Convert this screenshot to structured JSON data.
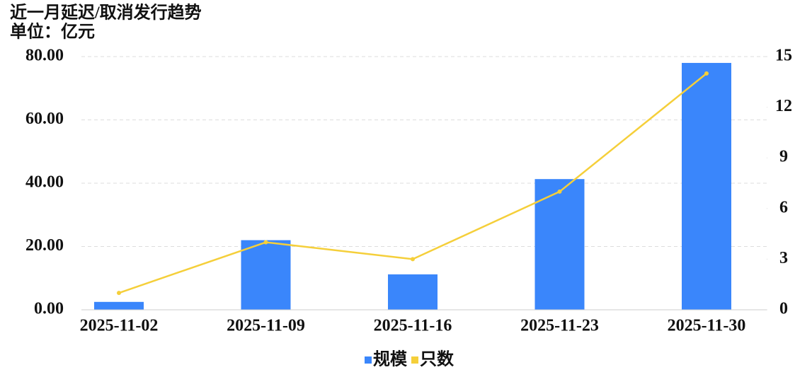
{
  "chart_data": {
    "type": "bar",
    "title": "近一月延迟/取消发行趋势",
    "subtitle": "单位：亿元",
    "categories": [
      "2025-11-02",
      "2025-11-09",
      "2025-11-16",
      "2025-11-23",
      "2025-11-30"
    ],
    "series": [
      {
        "name": "规模",
        "type": "bar",
        "color": "#3a86fb",
        "values": [
          2.5,
          22,
          11.2,
          41.3,
          78
        ]
      },
      {
        "name": "只数",
        "type": "line",
        "axis": "y2",
        "color": "#f5cf3a",
        "values": [
          1,
          4,
          3,
          7,
          14
        ]
      }
    ],
    "ylim": [
      0,
      80
    ],
    "yticks": [
      {
        "value": 0,
        "label": "0.00"
      },
      {
        "value": 20,
        "label": "20.00"
      },
      {
        "value": 40,
        "label": "40.00"
      },
      {
        "value": 60,
        "label": "60.00"
      },
      {
        "value": 80,
        "label": "80.00"
      }
    ],
    "y2lim": [
      0,
      15
    ],
    "y2ticks": [
      0,
      3,
      6,
      9,
      12,
      15
    ],
    "grid": true,
    "legend": "bottom"
  }
}
